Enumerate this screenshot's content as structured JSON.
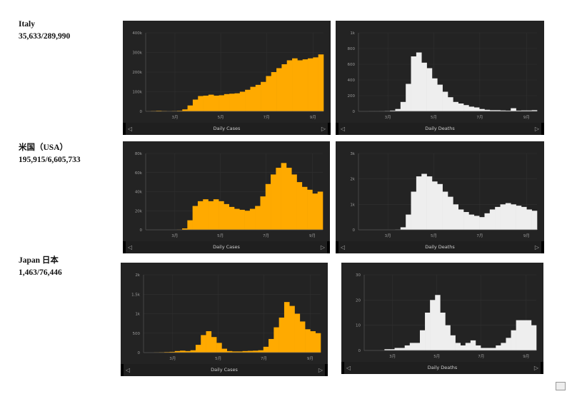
{
  "countries": [
    {
      "name": "Italy",
      "stats": "35,633/289,990"
    },
    {
      "name": "米国（USA）",
      "stats": "195,915/6,605,733"
    },
    {
      "name": "Japan 日本",
      "stats": "1,463/76,446"
    }
  ],
  "colors": {
    "cases": "#ffaa00",
    "deaths": "#eeeeee",
    "panel_bg": "#232323"
  },
  "icons": {
    "prev": "chevron-left-icon",
    "next": "chevron-right-icon"
  },
  "chart_data": [
    {
      "type": "bar",
      "xlabel": "Daily Cases",
      "color": "#ffaa00",
      "x_start": "2020-01-22",
      "x_end": "2020-09-14",
      "x_interval": "weekly",
      "xticks": [
        {
          "label": "3月",
          "date": "2020-03-01"
        },
        {
          "label": "5月",
          "date": "2020-05-01"
        },
        {
          "label": "7月",
          "date": "2020-07-01"
        },
        {
          "label": "9月",
          "date": "2020-09-01"
        }
      ],
      "yticks": [
        {
          "label": "0",
          "value": 0
        },
        {
          "label": "100k",
          "value": 100000
        },
        {
          "label": "200k",
          "value": 200000
        },
        {
          "label": "300k",
          "value": 300000
        },
        {
          "label": "400k",
          "value": 400000
        }
      ],
      "ylim": [
        0,
        400000
      ],
      "grid": true,
      "values": [
        500,
        2000,
        3000,
        2000,
        1000,
        2000,
        3000,
        10000,
        30000,
        60000,
        78000,
        80000,
        85000,
        80000,
        82000,
        88000,
        90000,
        92000,
        100000,
        110000,
        125000,
        135000,
        150000,
        180000,
        200000,
        220000,
        240000,
        260000,
        270000,
        260000,
        265000,
        270000,
        275000,
        290000
      ]
    },
    {
      "type": "bar",
      "xlabel": "Daily Deaths",
      "color": "#eeeeee",
      "x_start": "2020-01-22",
      "x_end": "2020-09-14",
      "x_interval": "weekly",
      "xticks": [
        {
          "label": "3月",
          "date": "2020-03-01"
        },
        {
          "label": "5月",
          "date": "2020-05-01"
        },
        {
          "label": "7月",
          "date": "2020-07-01"
        },
        {
          "label": "9月",
          "date": "2020-09-01"
        }
      ],
      "yticks": [
        {
          "label": "0",
          "value": 0
        },
        {
          "label": "200",
          "value": 200
        },
        {
          "label": "400",
          "value": 400
        },
        {
          "label": "600",
          "value": 600
        },
        {
          "label": "800",
          "value": 800
        },
        {
          "label": "1k",
          "value": 1000
        }
      ],
      "ylim": [
        0,
        1000
      ],
      "grid": true,
      "values": [
        0,
        0,
        1,
        1,
        2,
        5,
        10,
        30,
        120,
        350,
        700,
        750,
        620,
        550,
        420,
        340,
        250,
        180,
        120,
        100,
        80,
        60,
        50,
        30,
        20,
        15,
        15,
        12,
        10,
        40,
        10,
        12,
        12,
        15
      ]
    },
    {
      "type": "bar",
      "xlabel": "Daily Cases",
      "color": "#ffaa00",
      "x_start": "2020-01-22",
      "x_end": "2020-09-14",
      "x_interval": "weekly",
      "xticks": [
        {
          "label": "3月",
          "date": "2020-03-01"
        },
        {
          "label": "5月",
          "date": "2020-05-01"
        },
        {
          "label": "7月",
          "date": "2020-07-01"
        },
        {
          "label": "9月",
          "date": "2020-09-01"
        }
      ],
      "yticks": [
        {
          "label": "0",
          "value": 0
        },
        {
          "label": "20k",
          "value": 20000
        },
        {
          "label": "40k",
          "value": 40000
        },
        {
          "label": "60k",
          "value": 60000
        },
        {
          "label": "80k",
          "value": 80000
        }
      ],
      "ylim": [
        0,
        80000
      ],
      "grid": true,
      "values": [
        0,
        0,
        0,
        0,
        0,
        0,
        200,
        1500,
        10000,
        25000,
        30000,
        32000,
        30000,
        32000,
        30000,
        27000,
        24000,
        22000,
        21000,
        20000,
        22000,
        25000,
        35000,
        48000,
        58000,
        65000,
        70000,
        65000,
        58000,
        50000,
        45000,
        42000,
        38000,
        40000
      ]
    },
    {
      "type": "bar",
      "xlabel": "Daily Deaths",
      "color": "#eeeeee",
      "x_start": "2020-01-22",
      "x_end": "2020-09-14",
      "x_interval": "weekly",
      "xticks": [
        {
          "label": "3月",
          "date": "2020-03-01"
        },
        {
          "label": "5月",
          "date": "2020-05-01"
        },
        {
          "label": "7月",
          "date": "2020-07-01"
        },
        {
          "label": "9月",
          "date": "2020-09-01"
        }
      ],
      "yticks": [
        {
          "label": "0",
          "value": 0
        },
        {
          "label": "1k",
          "value": 1000
        },
        {
          "label": "2k",
          "value": 2000
        },
        {
          "label": "3k",
          "value": 3000
        }
      ],
      "ylim": [
        0,
        3000
      ],
      "grid": true,
      "values": [
        0,
        0,
        0,
        0,
        0,
        0,
        0,
        10,
        100,
        600,
        1500,
        2100,
        2200,
        2100,
        1900,
        1800,
        1500,
        1300,
        1000,
        800,
        700,
        600,
        550,
        500,
        650,
        800,
        900,
        1000,
        1050,
        1000,
        950,
        900,
        800,
        750
      ]
    },
    {
      "type": "bar",
      "xlabel": "Daily Cases",
      "color": "#ffaa00",
      "x_start": "2020-01-22",
      "x_end": "2020-09-14",
      "x_interval": "weekly",
      "xticks": [
        {
          "label": "3月",
          "date": "2020-03-01"
        },
        {
          "label": "5月",
          "date": "2020-05-01"
        },
        {
          "label": "7月",
          "date": "2020-07-01"
        },
        {
          "label": "9月",
          "date": "2020-09-01"
        }
      ],
      "yticks": [
        {
          "label": "0",
          "value": 0
        },
        {
          "label": "500",
          "value": 500
        },
        {
          "label": "1k",
          "value": 1000
        },
        {
          "label": "1.5k",
          "value": 1500
        },
        {
          "label": "2k",
          "value": 2000
        }
      ],
      "ylim": [
        0,
        2000
      ],
      "grid": true,
      "values": [
        0,
        0,
        5,
        10,
        15,
        20,
        40,
        50,
        40,
        60,
        200,
        450,
        550,
        400,
        250,
        100,
        40,
        30,
        30,
        40,
        45,
        50,
        60,
        150,
        350,
        650,
        900,
        1300,
        1200,
        1000,
        800,
        600,
        550,
        500
      ]
    },
    {
      "type": "bar",
      "xlabel": "Daily Deaths",
      "color": "#eeeeee",
      "x_start": "2020-01-22",
      "x_end": "2020-09-14",
      "x_interval": "weekly",
      "xticks": [
        {
          "label": "3月",
          "date": "2020-03-01"
        },
        {
          "label": "5月",
          "date": "2020-05-01"
        },
        {
          "label": "7月",
          "date": "2020-07-01"
        },
        {
          "label": "9月",
          "date": "2020-09-01"
        }
      ],
      "yticks": [
        {
          "label": "0",
          "value": 0
        },
        {
          "label": "10",
          "value": 10
        },
        {
          "label": "20",
          "value": 20
        },
        {
          "label": "30",
          "value": 30
        }
      ],
      "ylim": [
        0,
        30
      ],
      "grid": true,
      "values": [
        0,
        0,
        0,
        0,
        0.5,
        0.5,
        1,
        1,
        2,
        3,
        3,
        8,
        15,
        20,
        22,
        15,
        10,
        6,
        3,
        2,
        3,
        4,
        2,
        1,
        1,
        1,
        2,
        3,
        5,
        8,
        12,
        12,
        12,
        10
      ]
    }
  ]
}
